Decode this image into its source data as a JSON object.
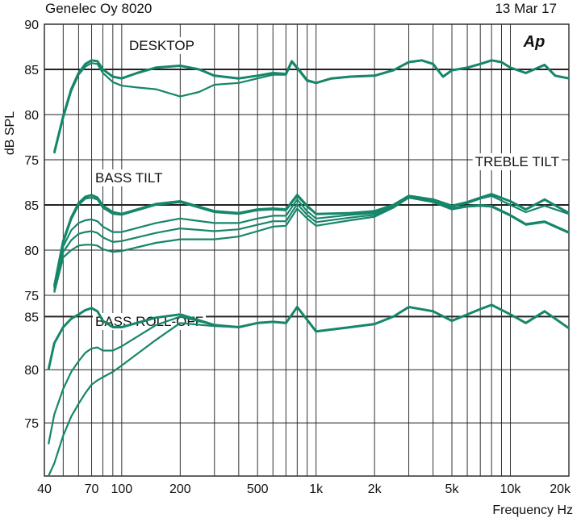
{
  "header": {
    "left": "Genelec Oy 8020",
    "right": "13 Mar 17",
    "logo": "Ap"
  },
  "chart_data": {
    "type": "line",
    "ylabel": "dB SPL",
    "xlabel": "Frequency Hz",
    "x_scale": "log",
    "xlim": [
      40,
      20000
    ],
    "x_ticks": [
      {
        "v": 40,
        "l": "40"
      },
      {
        "v": 70,
        "l": "70"
      },
      {
        "v": 100,
        "l": "100"
      },
      {
        "v": 200,
        "l": "200"
      },
      {
        "v": 500,
        "l": "500"
      },
      {
        "v": 1000,
        "l": "1k"
      },
      {
        "v": 2000,
        "l": "2k"
      },
      {
        "v": 5000,
        "l": "5k"
      },
      {
        "v": 10000,
        "l": "10k"
      },
      {
        "v": 20000,
        "l": "20k"
      }
    ],
    "grid_verticals": [
      50,
      60,
      70,
      80,
      90,
      100,
      200,
      300,
      400,
      500,
      600,
      700,
      800,
      900,
      1000,
      2000,
      3000,
      4000,
      5000,
      6000,
      7000,
      8000,
      9000,
      10000,
      20000
    ],
    "line_color": "#16866a",
    "grid": true,
    "panels": [
      {
        "title": "DESKTOP",
        "ylim": [
          75,
          90
        ],
        "y_ticks": [
          90,
          85,
          80,
          75
        ],
        "series": [
          {
            "x": [
              45,
              50,
              55,
              60,
              65,
              70,
              75,
              80,
              90,
              100,
              120,
              150,
              200,
              250,
              300,
              400,
              500,
              600,
              700,
              750,
              800,
              900,
              1000,
              1200,
              1500,
              2000,
              2500,
              3000,
              3500,
              4000,
              4500,
              5000,
              6000,
              7000,
              8000,
              9000,
              10000,
              12000,
              15000,
              17000,
              20000
            ],
            "y": [
              75.8,
              79.8,
              82.8,
              84.6,
              85.6,
              86.0,
              85.9,
              85.0,
              84.2,
              84.0,
              84.6,
              85.2,
              85.4,
              85.0,
              84.3,
              84.0,
              84.3,
              84.6,
              84.5,
              85.9,
              85.2,
              83.8,
              83.5,
              84.0,
              84.2,
              84.3,
              84.9,
              85.8,
              86.0,
              85.6,
              84.2,
              84.9,
              85.2,
              85.6,
              86.0,
              85.8,
              85.2,
              84.6,
              85.5,
              84.3,
              84.0
            ]
          },
          {
            "x": [
              45,
              50,
              55,
              60,
              65,
              70,
              75,
              80,
              90,
              100,
              120,
              150,
              200,
              250,
              300,
              400,
              500,
              600,
              700,
              750,
              800,
              900,
              1000,
              1200,
              1500,
              2000,
              2500,
              3000,
              3500,
              4000,
              4500,
              5000,
              6000,
              7000,
              8000,
              9000,
              10000,
              12000,
              15000,
              17000,
              20000
            ],
            "y": [
              75.7,
              79.6,
              82.6,
              84.4,
              85.3,
              85.7,
              85.6,
              84.6,
              83.6,
              83.2,
              83.0,
              82.8,
              82.0,
              82.5,
              83.3,
              83.5,
              84.0,
              84.4,
              84.4,
              85.8,
              85.1,
              83.7,
              83.5,
              84.0,
              84.2,
              84.3,
              84.9,
              85.8,
              86.0,
              85.6,
              84.2,
              84.9,
              85.2,
              85.6,
              86.0,
              85.8,
              85.2,
              84.6,
              85.5,
              84.3,
              84.0
            ]
          }
        ]
      },
      {
        "title": "BASS TILT",
        "label_right": "TREBLE TILT",
        "ylim": [
          75,
          90
        ],
        "y_ticks": [
          85,
          80,
          75
        ],
        "series": [
          {
            "x": [
              45,
              50,
              55,
              60,
              65,
              70,
              75,
              80,
              90,
              100,
              150,
              200,
              300,
              400,
              500,
              600,
              700,
              800,
              900,
              1000,
              1500,
              2000,
              2500,
              3000,
              4000,
              5000,
              6000,
              7000,
              8000,
              10000,
              12000,
              15000,
              20000
            ],
            "y": [
              76.0,
              81.0,
              83.6,
              85.2,
              85.9,
              86.1,
              85.8,
              84.9,
              84.2,
              84.0,
              85.1,
              85.4,
              84.3,
              84.1,
              84.5,
              84.6,
              84.5,
              86.1,
              84.9,
              84.0,
              84.1,
              84.3,
              85.0,
              86.0,
              85.6,
              84.9,
              85.3,
              85.8,
              86.2,
              85.4,
              84.5,
              85.6,
              84.1
            ]
          },
          {
            "x": [
              45,
              50,
              55,
              60,
              65,
              70,
              75,
              80,
              90,
              100,
              150,
              200,
              300,
              400,
              500,
              600,
              700,
              800,
              900,
              1000,
              1500,
              2000,
              2500,
              3000,
              4000,
              5000,
              6000,
              7000,
              8000,
              10000,
              12000,
              15000,
              20000
            ],
            "y": [
              75.8,
              80.8,
              83.4,
              85.0,
              85.7,
              85.8,
              85.6,
              84.7,
              84.0,
              83.9,
              85.0,
              85.3,
              84.2,
              84.0,
              84.4,
              84.5,
              84.4,
              86.0,
              84.8,
              84.0,
              84.1,
              84.3,
              85.0,
              86.0,
              85.6,
              84.9,
              85.2,
              85.7,
              86.0,
              85.0,
              84.2,
              84.9,
              84.0
            ]
          },
          {
            "x": [
              45,
              50,
              55,
              60,
              65,
              70,
              75,
              80,
              90,
              100,
              150,
              200,
              300,
              400,
              500,
              600,
              700,
              800,
              900,
              1000,
              1500,
              2000,
              2500,
              3000,
              4000,
              5000,
              6000,
              7000,
              8000,
              10000,
              12000,
              15000,
              20000
            ],
            "y": [
              75.6,
              80.4,
              82.2,
              83.0,
              83.3,
              83.4,
              83.2,
              82.6,
              82.0,
              82.0,
              83.0,
              83.5,
              83.0,
              83.0,
              83.5,
              83.8,
              83.8,
              85.6,
              84.3,
              83.5,
              83.9,
              84.1,
              84.9,
              85.9,
              85.5,
              84.7,
              84.9,
              85.0,
              84.9,
              83.9,
              82.9,
              83.2,
              82.0
            ]
          },
          {
            "x": [
              45,
              50,
              55,
              60,
              65,
              70,
              75,
              80,
              90,
              100,
              150,
              200,
              300,
              400,
              500,
              600,
              700,
              800,
              900,
              1000,
              1500,
              2000,
              2500,
              3000,
              4000,
              5000,
              6000,
              7000,
              8000,
              10000,
              12000,
              15000,
              20000
            ],
            "y": [
              75.4,
              79.8,
              81.1,
              81.8,
              82.0,
              82.1,
              81.9,
              81.4,
              80.9,
              81.0,
              81.9,
              82.4,
              82.1,
              82.3,
              82.8,
              83.2,
              83.2,
              85.1,
              83.9,
              83.1,
              83.6,
              83.9,
              84.8,
              85.8,
              85.4,
              84.6,
              84.8,
              84.9,
              84.8,
              83.8,
              82.8,
              83.1,
              81.9
            ]
          },
          {
            "x": [
              45,
              50,
              55,
              60,
              65,
              70,
              75,
              80,
              90,
              100,
              150,
              200,
              300,
              400,
              500,
              600,
              700,
              800,
              900,
              1000,
              1500,
              2000,
              2500,
              3000,
              4000,
              5000,
              6000,
              7000,
              8000,
              10000,
              12000,
              15000,
              20000
            ],
            "y": [
              75.3,
              79.2,
              80.0,
              80.5,
              80.6,
              80.6,
              80.5,
              80.1,
              79.8,
              79.9,
              80.8,
              81.2,
              81.2,
              81.5,
              82.1,
              82.6,
              82.7,
              84.6,
              83.5,
              82.7,
              83.3,
              83.7,
              84.7,
              85.8,
              85.3,
              84.5,
              84.8,
              84.9,
              84.8,
              83.8,
              82.8,
              83.1,
              81.9
            ]
          }
        ]
      },
      {
        "title": "BASS ROLL-OFF",
        "ylim": [
          70,
          87
        ],
        "y_ticks": [
          85,
          80,
          75
        ],
        "series": [
          {
            "x": [
              42,
              45,
              50,
              55,
              60,
              65,
              70,
              75,
              80,
              90,
              100,
              150,
              200,
              300,
              400,
              500,
              600,
              700,
              800,
              900,
              1000,
              1500,
              2000,
              2500,
              3000,
              4000,
              5000,
              6000,
              7000,
              8000,
              10000,
              12000,
              15000,
              20000
            ],
            "y": [
              80.0,
              82.5,
              84.0,
              84.8,
              85.2,
              85.6,
              85.8,
              85.5,
              84.6,
              84.0,
              84.0,
              84.9,
              85.2,
              84.2,
              84.0,
              84.4,
              84.5,
              84.4,
              85.9,
              84.7,
              83.6,
              84.0,
              84.3,
              85.0,
              85.9,
              85.5,
              84.6,
              85.2,
              85.7,
              86.1,
              85.2,
              84.4,
              85.5,
              83.9
            ]
          },
          {
            "x": [
              42,
              45,
              50,
              55,
              60,
              65,
              70,
              75,
              80,
              90,
              100,
              150,
              200,
              300,
              400,
              500,
              600,
              700,
              800,
              900,
              1000,
              1500,
              2000,
              2500,
              3000,
              4000,
              5000,
              6000,
              7000,
              8000,
              10000,
              12000,
              15000,
              20000
            ],
            "y": [
              73.0,
              75.8,
              78.2,
              79.8,
              80.8,
              81.6,
              82.0,
              82.1,
              81.8,
              81.8,
              82.2,
              84.2,
              85.0,
              84.2,
              84.0,
              84.4,
              84.5,
              84.4,
              85.9,
              84.7,
              83.6,
              84.0,
              84.3,
              85.0,
              85.9,
              85.5,
              84.6,
              85.2,
              85.7,
              86.1,
              85.2,
              84.4,
              85.5,
              83.9
            ]
          },
          {
            "x": [
              42,
              45,
              50,
              55,
              60,
              65,
              70,
              75,
              80,
              90,
              100,
              150,
              200,
              300,
              400,
              500,
              600,
              700,
              800,
              900,
              1000,
              1500,
              2000,
              2500,
              3000,
              4000,
              5000,
              6000,
              7000,
              8000,
              10000,
              12000,
              15000,
              20000
            ],
            "y": [
              70.0,
              71.2,
              73.8,
              75.6,
              76.8,
              77.8,
              78.6,
              79.0,
              79.3,
              79.8,
              80.4,
              82.8,
              84.4,
              84.1,
              84.0,
              84.4,
              84.5,
              84.4,
              85.9,
              84.7,
              83.6,
              84.0,
              84.3,
              85.0,
              85.9,
              85.5,
              84.6,
              85.2,
              85.7,
              86.1,
              85.2,
              84.4,
              85.5,
              83.9
            ]
          }
        ]
      }
    ]
  }
}
